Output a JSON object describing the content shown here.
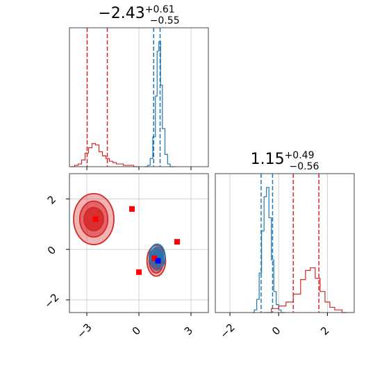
{
  "chart_data": [
    {
      "type": "histogram",
      "panel": "top-left",
      "title": {
        "main": "−2.43",
        "sup": "+0.61",
        "sub": "−0.55"
      },
      "xlim": [
        -4,
        4
      ],
      "x_ticks": [
        -3,
        0,
        3
      ],
      "grid": true,
      "series": [
        {
          "color": "#d62728",
          "bins": [
            [
              -3.9,
              0
            ],
            [
              -3.7,
              1
            ],
            [
              -3.5,
              2
            ],
            [
              -3.3,
              5
            ],
            [
              -3.1,
              10
            ],
            [
              -2.9,
              14
            ],
            [
              -2.7,
              17
            ],
            [
              -2.5,
              16
            ],
            [
              -2.3,
              11
            ],
            [
              -2.1,
              8
            ],
            [
              -1.9,
              6
            ],
            [
              -1.7,
              4
            ],
            [
              -1.5,
              3
            ],
            [
              -1.3,
              2
            ],
            [
              -1.1,
              2
            ],
            [
              -0.9,
              1
            ],
            [
              -0.7,
              1
            ],
            [
              -0.5,
              1
            ],
            [
              -0.3,
              0
            ]
          ],
          "quantile_lines": [
            -2.98,
            -1.82
          ]
        },
        {
          "color": "#1f77b4",
          "bins": [
            [
              0.3,
              0
            ],
            [
              0.5,
              1
            ],
            [
              0.65,
              6
            ],
            [
              0.8,
              22
            ],
            [
              0.95,
              52
            ],
            [
              1.05,
              85
            ],
            [
              1.15,
              92
            ],
            [
              1.25,
              60
            ],
            [
              1.35,
              28
            ],
            [
              1.5,
              9
            ],
            [
              1.65,
              2
            ],
            [
              1.8,
              0
            ]
          ],
          "quantile_lines": [
            0.85,
            1.22
          ]
        }
      ]
    },
    {
      "type": "histogram",
      "panel": "bottom-right",
      "title": {
        "main": "1.15",
        "sup": "+0.49",
        "sub": "−0.56"
      },
      "xlim": [
        -2.6,
        3.1
      ],
      "x_ticks": [
        -2,
        0,
        2
      ],
      "grid": true,
      "series": [
        {
          "color": "#1f77b4",
          "bins": [
            [
              -1.1,
              0
            ],
            [
              -1.0,
              2
            ],
            [
              -0.9,
              10
            ],
            [
              -0.8,
              30
            ],
            [
              -0.7,
              62
            ],
            [
              -0.6,
              88
            ],
            [
              -0.5,
              95
            ],
            [
              -0.4,
              72
            ],
            [
              -0.3,
              40
            ],
            [
              -0.2,
              16
            ],
            [
              -0.1,
              6
            ],
            [
              0.0,
              2
            ],
            [
              0.1,
              0
            ]
          ],
          "quantile_lines": [
            -0.72,
            -0.25
          ]
        },
        {
          "color": "#d62728",
          "bins": [
            [
              -0.6,
              0
            ],
            [
              -0.3,
              3
            ],
            [
              0.0,
              5
            ],
            [
              0.3,
              8
            ],
            [
              0.6,
              14
            ],
            [
              0.9,
              25
            ],
            [
              1.1,
              32
            ],
            [
              1.3,
              34
            ],
            [
              1.5,
              26
            ],
            [
              1.7,
              16
            ],
            [
              1.9,
              8
            ],
            [
              2.1,
              4
            ],
            [
              2.3,
              2
            ],
            [
              2.6,
              0
            ]
          ],
          "quantile_lines": [
            0.6,
            1.65
          ]
        }
      ]
    },
    {
      "type": "contour",
      "panel": "bottom-left",
      "xlim": [
        -4,
        4
      ],
      "ylim": [
        -2.5,
        3.0
      ],
      "x_ticks": [
        -3,
        0,
        3
      ],
      "y_ticks": [
        -2,
        0,
        2
      ],
      "grid": true,
      "contours": [
        {
          "color": "#d62728",
          "center": [
            -2.6,
            1.2
          ],
          "radii": [
            [
              2.0,
              1.8
            ],
            [
              1.3,
              1.2
            ],
            [
              0.8,
              0.7
            ]
          ]
        },
        {
          "color": "#d62728",
          "center": [
            1.0,
            -0.45
          ],
          "radii": [
            [
              0.75,
              1.0
            ],
            [
              0.5,
              0.75
            ],
            [
              0.3,
              0.45
            ]
          ]
        },
        {
          "color": "#1f77b4",
          "center": [
            1.05,
            -0.3
          ],
          "radii": [
            [
              0.6,
              0.8
            ],
            [
              0.4,
              0.55
            ],
            [
              0.22,
              0.3
            ]
          ]
        }
      ],
      "markers": [
        {
          "color": "#ff0000",
          "x": -2.5,
          "y": 1.2
        },
        {
          "color": "#ff0000",
          "x": -0.4,
          "y": 1.6
        },
        {
          "color": "#ff0000",
          "x": 2.2,
          "y": 0.3
        },
        {
          "color": "#ff0000",
          "x": 0.0,
          "y": -0.9
        },
        {
          "color": "#ff0000",
          "x": 0.9,
          "y": -0.35
        },
        {
          "color": "#0000ff",
          "x": 1.1,
          "y": -0.45
        }
      ]
    }
  ]
}
